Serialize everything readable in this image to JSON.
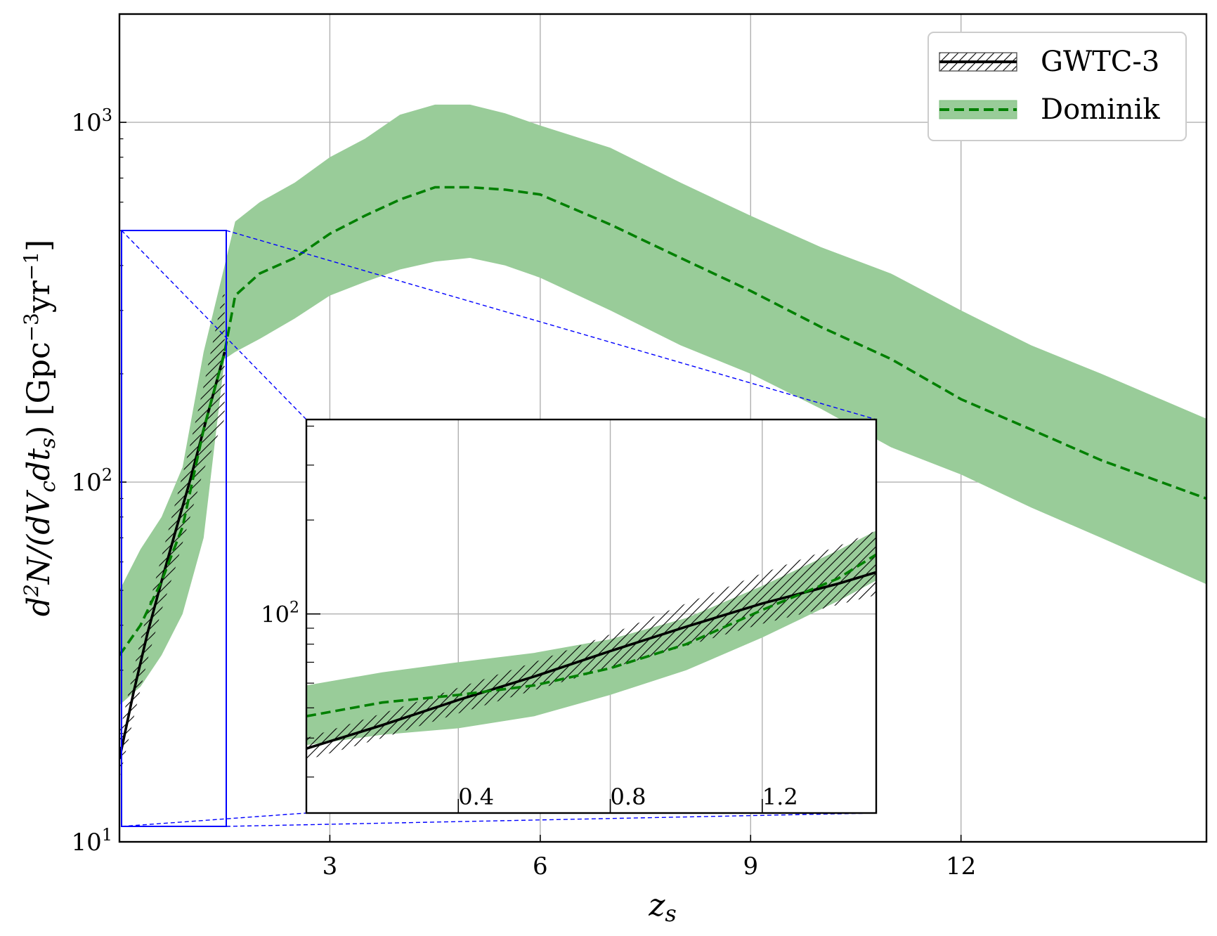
{
  "chart_data": [
    {
      "type": "line",
      "xlabel": "z_s",
      "ylabel": "d²N/(dV_c dt_s) [Gpc⁻³yr⁻¹]",
      "xlim": [
        0,
        15.5
      ],
      "ylim": [
        10,
        2000
      ],
      "yscale": "log",
      "grid": true,
      "legend_position": "top-right",
      "xticks": [
        "3",
        "6",
        "9",
        "12"
      ],
      "yticks": [
        {
          "base": "10",
          "exp": "1"
        },
        {
          "base": "10",
          "exp": "2"
        },
        {
          "base": "10",
          "exp": "3"
        }
      ],
      "series": [
        {
          "name": "GWTC-3",
          "style": "solid-line-with-hatched-band",
          "color": "#000000",
          "x": [
            0.0,
            0.2,
            0.4,
            0.6,
            0.8,
            1.0,
            1.2,
            1.5
          ],
          "y": [
            17,
            26,
            38,
            53,
            73,
            100,
            140,
            230
          ],
          "lower": [
            15,
            22,
            32,
            44,
            58,
            79,
            108,
            150
          ],
          "upper": [
            20,
            30,
            44,
            62,
            88,
            125,
            185,
            350
          ]
        },
        {
          "name": "Dominik",
          "style": "dashed-line-with-filled-band",
          "color": "#008000",
          "band_color": "#99cc99",
          "x": [
            0.0,
            0.3,
            0.6,
            0.9,
            1.2,
            1.5,
            1.65,
            2.0,
            2.5,
            3.0,
            3.5,
            4.0,
            4.5,
            5.0,
            5.5,
            6.0,
            7.0,
            8.0,
            9.0,
            10.0,
            11.0,
            12.0,
            13.0,
            14.0,
            15.5
          ],
          "y": [
            33,
            40,
            53,
            75,
            140,
            230,
            330,
            380,
            420,
            490,
            550,
            610,
            660,
            660,
            650,
            630,
            520,
            420,
            340,
            270,
            220,
            170,
            140,
            115,
            90
          ],
          "lower": [
            24,
            27,
            33,
            43,
            70,
            220,
            230,
            250,
            285,
            330,
            360,
            390,
            410,
            420,
            400,
            370,
            300,
            240,
            200,
            160,
            125,
            105,
            85,
            70,
            52
          ],
          "upper": [
            50,
            65,
            80,
            110,
            230,
            400,
            530,
            600,
            680,
            800,
            900,
            1050,
            1120,
            1120,
            1060,
            980,
            850,
            680,
            550,
            450,
            380,
            300,
            240,
            200,
            150
          ]
        }
      ]
    },
    {
      "type": "line",
      "role": "inset-zoom",
      "xlim": [
        0.0,
        1.5
      ],
      "ylim": [
        23,
        420
      ],
      "yscale": "log",
      "grid": true,
      "xticks": [
        "0.4",
        "0.8",
        "1.2"
      ],
      "yticks": [
        {
          "base": "10",
          "exp": "2"
        }
      ],
      "series": [
        {
          "name": "GWTC-3",
          "color": "#000000",
          "x": [
            0.0,
            0.2,
            0.4,
            0.6,
            0.8,
            1.0,
            1.2,
            1.4,
            1.5
          ],
          "y": [
            37,
            44,
            53,
            63,
            76,
            91,
            108,
            125,
            136
          ],
          "lower": [
            34,
            40,
            48,
            57,
            67,
            79,
            93,
            107,
            115
          ],
          "upper": [
            40,
            48,
            58,
            70,
            86,
            108,
            135,
            165,
            185
          ]
        },
        {
          "name": "Dominik",
          "color": "#008000",
          "x": [
            0.0,
            0.2,
            0.4,
            0.6,
            0.8,
            1.0,
            1.2,
            1.4,
            1.5
          ],
          "y": [
            47,
            52,
            55,
            59,
            67,
            80,
            103,
            130,
            155
          ],
          "lower": [
            38,
            41,
            43,
            47,
            55,
            66,
            84,
            110,
            128
          ],
          "upper": [
            59,
            65,
            70,
            75,
            83,
            97,
            123,
            160,
            185
          ]
        }
      ]
    }
  ]
}
